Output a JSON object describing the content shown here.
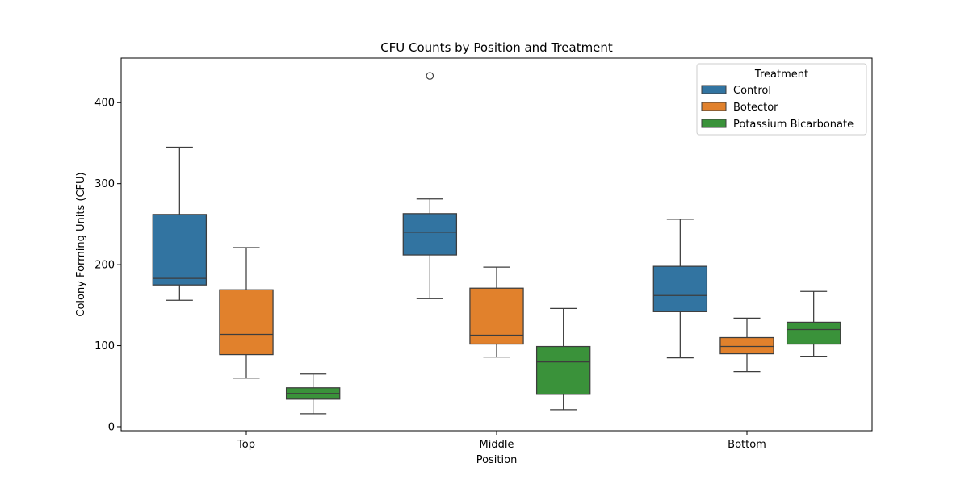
{
  "chart_data": {
    "type": "box",
    "title": "CFU Counts by Position and Treatment",
    "xlabel": "Position",
    "ylabel": "Colony Forming Units (CFU)",
    "categories": [
      "Top",
      "Middle",
      "Bottom"
    ],
    "ylim": [
      -5,
      455
    ],
    "yticks": [
      0,
      100,
      200,
      300,
      400
    ],
    "grid": false,
    "legend": {
      "title": "Treatment",
      "placement": "top-right"
    },
    "series": [
      {
        "name": "Control",
        "color": "#3274a1",
        "boxes": [
          {
            "category": "Top",
            "whisker_low": 156,
            "q1": 175,
            "median": 183,
            "q3": 262,
            "whisker_high": 345,
            "outliers": []
          },
          {
            "category": "Middle",
            "whisker_low": 158,
            "q1": 212,
            "median": 240,
            "q3": 263,
            "whisker_high": 281,
            "outliers": [
              433
            ]
          },
          {
            "category": "Bottom",
            "whisker_low": 85,
            "q1": 142,
            "median": 162,
            "q3": 198,
            "whisker_high": 256,
            "outliers": []
          }
        ]
      },
      {
        "name": "Botector",
        "color": "#e1812c",
        "boxes": [
          {
            "category": "Top",
            "whisker_low": 60,
            "q1": 89,
            "median": 114,
            "q3": 169,
            "whisker_high": 221,
            "outliers": []
          },
          {
            "category": "Middle",
            "whisker_low": 86,
            "q1": 102,
            "median": 113,
            "q3": 171,
            "whisker_high": 197,
            "outliers": []
          },
          {
            "category": "Bottom",
            "whisker_low": 68,
            "q1": 90,
            "median": 99,
            "q3": 110,
            "whisker_high": 134,
            "outliers": []
          }
        ]
      },
      {
        "name": "Potassium Bicarbonate",
        "color": "#3a923a",
        "boxes": [
          {
            "category": "Top",
            "whisker_low": 16,
            "q1": 34,
            "median": 41,
            "q3": 48,
            "whisker_high": 65,
            "outliers": []
          },
          {
            "category": "Middle",
            "whisker_low": 21,
            "q1": 40,
            "median": 80,
            "q3": 99,
            "whisker_high": 146,
            "outliers": []
          },
          {
            "category": "Bottom",
            "whisker_low": 87,
            "q1": 102,
            "median": 120,
            "q3": 129,
            "whisker_high": 167,
            "outliers": []
          }
        ]
      }
    ]
  }
}
